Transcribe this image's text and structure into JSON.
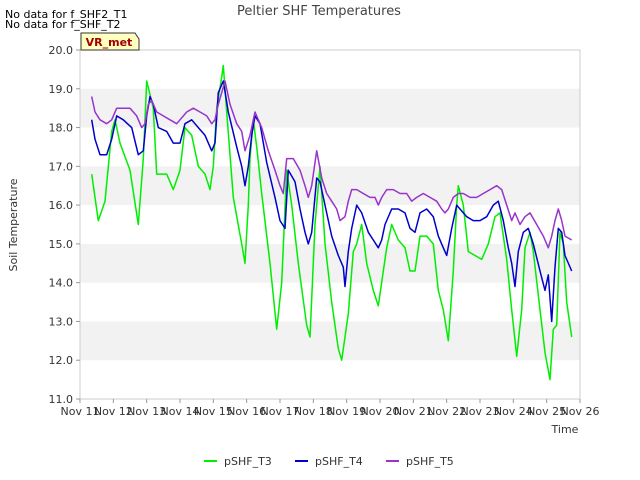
{
  "notes": [
    "No data for f_SHF2_T1",
    "No data for f_SHF_T2"
  ],
  "badge": "VR_met",
  "chart_data": {
    "type": "line",
    "title": "Peltier SHF Temperatures",
    "xlabel": "Time",
    "ylabel": "Soil Temperature",
    "xlim": [
      11,
      26
    ],
    "ylim": [
      11.0,
      20.0
    ],
    "x_ticks": [
      11,
      12,
      13,
      14,
      15,
      16,
      17,
      18,
      19,
      20,
      21,
      22,
      23,
      24,
      25,
      26
    ],
    "x_tick_labels": [
      "Nov 11",
      "Nov 12",
      "Nov 13",
      "Nov 14",
      "Nov 15",
      "Nov 16",
      "Nov 17",
      "Nov 18",
      "Nov 19",
      "Nov 20",
      "Nov 21",
      "Nov 22",
      "Nov 23",
      "Nov 24",
      "Nov 25",
      "Nov 26"
    ],
    "y_ticks": [
      "11.0",
      "12.0",
      "13.0",
      "14.0",
      "15.0",
      "16.0",
      "17.0",
      "18.0",
      "19.0",
      "20.0"
    ],
    "series": [
      {
        "name": "pSHF_T3",
        "color": "#00ee00",
        "points": [
          [
            11.35,
            16.8
          ],
          [
            11.55,
            15.6
          ],
          [
            11.75,
            16.1
          ],
          [
            11.95,
            17.9
          ],
          [
            12.05,
            18.2
          ],
          [
            12.2,
            17.6
          ],
          [
            12.5,
            16.9
          ],
          [
            12.75,
            15.5
          ],
          [
            12.9,
            17.2
          ],
          [
            13.0,
            19.2
          ],
          [
            13.2,
            18.5
          ],
          [
            13.3,
            16.8
          ],
          [
            13.6,
            16.8
          ],
          [
            13.8,
            16.4
          ],
          [
            14.0,
            16.9
          ],
          [
            14.15,
            18.0
          ],
          [
            14.35,
            17.8
          ],
          [
            14.55,
            17.0
          ],
          [
            14.75,
            16.8
          ],
          [
            14.9,
            16.4
          ],
          [
            15.0,
            17.0
          ],
          [
            15.1,
            18.5
          ],
          [
            15.25,
            19.3
          ],
          [
            15.3,
            19.6
          ],
          [
            15.4,
            18.4
          ],
          [
            15.6,
            16.2
          ],
          [
            15.85,
            15.0
          ],
          [
            15.95,
            14.5
          ],
          [
            16.05,
            16.0
          ],
          [
            16.1,
            17.2
          ],
          [
            16.2,
            18.2
          ],
          [
            16.3,
            17.5
          ],
          [
            16.45,
            16.3
          ],
          [
            16.7,
            14.5
          ],
          [
            16.9,
            12.8
          ],
          [
            17.05,
            14.0
          ],
          [
            17.2,
            16.9
          ],
          [
            17.35,
            16.0
          ],
          [
            17.55,
            14.5
          ],
          [
            17.8,
            12.9
          ],
          [
            17.9,
            12.6
          ],
          [
            18.05,
            15.5
          ],
          [
            18.2,
            17.0
          ],
          [
            18.35,
            15.0
          ],
          [
            18.55,
            13.5
          ],
          [
            18.75,
            12.3
          ],
          [
            18.85,
            12.0
          ],
          [
            18.95,
            12.6
          ],
          [
            19.05,
            13.2
          ],
          [
            19.2,
            14.8
          ],
          [
            19.3,
            15.0
          ],
          [
            19.45,
            15.5
          ],
          [
            19.6,
            14.5
          ],
          [
            19.8,
            13.8
          ],
          [
            19.95,
            13.4
          ],
          [
            20.1,
            14.3
          ],
          [
            20.2,
            14.9
          ],
          [
            20.35,
            15.5
          ],
          [
            20.55,
            15.1
          ],
          [
            20.75,
            14.9
          ],
          [
            20.9,
            14.3
          ],
          [
            21.05,
            14.3
          ],
          [
            21.2,
            15.2
          ],
          [
            21.4,
            15.2
          ],
          [
            21.6,
            15.0
          ],
          [
            21.75,
            13.8
          ],
          [
            21.9,
            13.3
          ],
          [
            22.05,
            12.5
          ],
          [
            22.2,
            14.3
          ],
          [
            22.3,
            16.0
          ],
          [
            22.35,
            16.5
          ],
          [
            22.5,
            16.0
          ],
          [
            22.65,
            14.8
          ],
          [
            22.85,
            14.7
          ],
          [
            23.05,
            14.6
          ],
          [
            23.25,
            15.0
          ],
          [
            23.45,
            15.7
          ],
          [
            23.6,
            15.8
          ],
          [
            23.8,
            14.6
          ],
          [
            23.95,
            13.3
          ],
          [
            24.1,
            12.1
          ],
          [
            24.25,
            13.3
          ],
          [
            24.35,
            14.9
          ],
          [
            24.5,
            15.3
          ],
          [
            24.6,
            14.8
          ],
          [
            24.8,
            13.3
          ],
          [
            24.95,
            12.2
          ],
          [
            25.1,
            11.5
          ],
          [
            25.2,
            12.8
          ],
          [
            25.3,
            12.9
          ],
          [
            25.4,
            15.3
          ],
          [
            25.5,
            15.0
          ],
          [
            25.6,
            13.5
          ],
          [
            25.75,
            12.6
          ]
        ]
      },
      {
        "name": "pSHF_T4",
        "color": "#0000cc",
        "points": [
          [
            11.35,
            18.2
          ],
          [
            11.45,
            17.7
          ],
          [
            11.6,
            17.3
          ],
          [
            11.8,
            17.3
          ],
          [
            11.95,
            17.7
          ],
          [
            12.1,
            18.3
          ],
          [
            12.3,
            18.2
          ],
          [
            12.55,
            18.0
          ],
          [
            12.75,
            17.3
          ],
          [
            12.9,
            17.4
          ],
          [
            13.0,
            18.3
          ],
          [
            13.1,
            18.8
          ],
          [
            13.2,
            18.6
          ],
          [
            13.35,
            18.0
          ],
          [
            13.6,
            17.9
          ],
          [
            13.8,
            17.6
          ],
          [
            14.0,
            17.6
          ],
          [
            14.15,
            18.1
          ],
          [
            14.35,
            18.2
          ],
          [
            14.55,
            18.0
          ],
          [
            14.75,
            17.8
          ],
          [
            14.95,
            17.4
          ],
          [
            15.05,
            17.6
          ],
          [
            15.15,
            18.9
          ],
          [
            15.3,
            19.2
          ],
          [
            15.45,
            18.4
          ],
          [
            15.7,
            17.5
          ],
          [
            15.85,
            17.0
          ],
          [
            15.95,
            16.5
          ],
          [
            16.05,
            17.0
          ],
          [
            16.15,
            17.8
          ],
          [
            16.25,
            18.3
          ],
          [
            16.4,
            18.1
          ],
          [
            16.6,
            17.1
          ],
          [
            16.85,
            16.2
          ],
          [
            17.0,
            15.6
          ],
          [
            17.15,
            15.4
          ],
          [
            17.25,
            16.9
          ],
          [
            17.45,
            16.6
          ],
          [
            17.6,
            15.9
          ],
          [
            17.75,
            15.3
          ],
          [
            17.85,
            15.0
          ],
          [
            17.95,
            15.3
          ],
          [
            18.1,
            16.7
          ],
          [
            18.2,
            16.6
          ],
          [
            18.35,
            16.0
          ],
          [
            18.55,
            15.2
          ],
          [
            18.75,
            14.7
          ],
          [
            18.9,
            14.4
          ],
          [
            18.95,
            13.9
          ],
          [
            19.05,
            14.8
          ],
          [
            19.15,
            15.4
          ],
          [
            19.3,
            16.0
          ],
          [
            19.45,
            15.8
          ],
          [
            19.65,
            15.3
          ],
          [
            19.8,
            15.1
          ],
          [
            19.95,
            14.9
          ],
          [
            20.05,
            15.1
          ],
          [
            20.15,
            15.5
          ],
          [
            20.35,
            15.9
          ],
          [
            20.55,
            15.9
          ],
          [
            20.75,
            15.8
          ],
          [
            20.9,
            15.4
          ],
          [
            21.05,
            15.3
          ],
          [
            21.2,
            15.8
          ],
          [
            21.4,
            15.9
          ],
          [
            21.6,
            15.7
          ],
          [
            21.75,
            15.2
          ],
          [
            21.9,
            14.9
          ],
          [
            22.0,
            14.7
          ],
          [
            22.15,
            15.4
          ],
          [
            22.3,
            16.0
          ],
          [
            22.4,
            15.9
          ],
          [
            22.6,
            15.7
          ],
          [
            22.8,
            15.6
          ],
          [
            23.0,
            15.6
          ],
          [
            23.2,
            15.7
          ],
          [
            23.4,
            16.0
          ],
          [
            23.55,
            16.1
          ],
          [
            23.7,
            15.6
          ],
          [
            23.85,
            14.9
          ],
          [
            23.95,
            14.5
          ],
          [
            24.05,
            13.9
          ],
          [
            24.15,
            14.8
          ],
          [
            24.3,
            15.3
          ],
          [
            24.45,
            15.4
          ],
          [
            24.6,
            15.0
          ],
          [
            24.8,
            14.3
          ],
          [
            24.95,
            13.8
          ],
          [
            25.05,
            14.2
          ],
          [
            25.15,
            13.0
          ],
          [
            25.25,
            14.4
          ],
          [
            25.35,
            15.4
          ],
          [
            25.45,
            15.3
          ],
          [
            25.55,
            14.7
          ],
          [
            25.75,
            14.3
          ]
        ]
      },
      {
        "name": "pSHF_T5",
        "color": "#9933cc",
        "points": [
          [
            11.35,
            18.8
          ],
          [
            11.45,
            18.4
          ],
          [
            11.6,
            18.2
          ],
          [
            11.8,
            18.1
          ],
          [
            11.95,
            18.2
          ],
          [
            12.1,
            18.5
          ],
          [
            12.3,
            18.5
          ],
          [
            12.5,
            18.5
          ],
          [
            12.7,
            18.3
          ],
          [
            12.85,
            18.0
          ],
          [
            12.95,
            18.1
          ],
          [
            13.05,
            18.6
          ],
          [
            13.15,
            18.7
          ],
          [
            13.3,
            18.4
          ],
          [
            13.5,
            18.3
          ],
          [
            13.7,
            18.2
          ],
          [
            13.9,
            18.1
          ],
          [
            14.0,
            18.2
          ],
          [
            14.2,
            18.4
          ],
          [
            14.4,
            18.5
          ],
          [
            14.6,
            18.4
          ],
          [
            14.8,
            18.3
          ],
          [
            14.95,
            18.1
          ],
          [
            15.05,
            18.2
          ],
          [
            15.15,
            18.6
          ],
          [
            15.25,
            18.9
          ],
          [
            15.35,
            19.2
          ],
          [
            15.5,
            18.6
          ],
          [
            15.7,
            18.1
          ],
          [
            15.85,
            17.9
          ],
          [
            15.95,
            17.4
          ],
          [
            16.1,
            17.8
          ],
          [
            16.25,
            18.4
          ],
          [
            16.45,
            18.0
          ],
          [
            16.65,
            17.4
          ],
          [
            16.85,
            16.9
          ],
          [
            17.0,
            16.5
          ],
          [
            17.1,
            16.3
          ],
          [
            17.2,
            17.2
          ],
          [
            17.4,
            17.2
          ],
          [
            17.6,
            16.9
          ],
          [
            17.75,
            16.5
          ],
          [
            17.85,
            16.2
          ],
          [
            17.95,
            16.5
          ],
          [
            18.05,
            17.1
          ],
          [
            18.1,
            17.4
          ],
          [
            18.25,
            16.7
          ],
          [
            18.4,
            16.3
          ],
          [
            18.55,
            16.1
          ],
          [
            18.7,
            15.9
          ],
          [
            18.8,
            15.6
          ],
          [
            18.95,
            15.7
          ],
          [
            19.05,
            16.1
          ],
          [
            19.15,
            16.4
          ],
          [
            19.3,
            16.4
          ],
          [
            19.5,
            16.3
          ],
          [
            19.7,
            16.2
          ],
          [
            19.85,
            16.2
          ],
          [
            19.95,
            16.0
          ],
          [
            20.05,
            16.2
          ],
          [
            20.2,
            16.4
          ],
          [
            20.4,
            16.4
          ],
          [
            20.6,
            16.3
          ],
          [
            20.8,
            16.3
          ],
          [
            20.95,
            16.1
          ],
          [
            21.1,
            16.2
          ],
          [
            21.3,
            16.3
          ],
          [
            21.5,
            16.2
          ],
          [
            21.7,
            16.1
          ],
          [
            21.85,
            15.9
          ],
          [
            21.95,
            15.8
          ],
          [
            22.05,
            15.9
          ],
          [
            22.2,
            16.2
          ],
          [
            22.35,
            16.3
          ],
          [
            22.5,
            16.3
          ],
          [
            22.7,
            16.2
          ],
          [
            22.9,
            16.2
          ],
          [
            23.1,
            16.3
          ],
          [
            23.3,
            16.4
          ],
          [
            23.5,
            16.5
          ],
          [
            23.65,
            16.4
          ],
          [
            23.8,
            16.0
          ],
          [
            23.95,
            15.6
          ],
          [
            24.05,
            15.8
          ],
          [
            24.2,
            15.5
          ],
          [
            24.35,
            15.7
          ],
          [
            24.5,
            15.8
          ],
          [
            24.7,
            15.5
          ],
          [
            24.9,
            15.2
          ],
          [
            25.05,
            14.9
          ],
          [
            25.15,
            15.2
          ],
          [
            25.25,
            15.6
          ],
          [
            25.35,
            15.9
          ],
          [
            25.45,
            15.6
          ],
          [
            25.55,
            15.2
          ],
          [
            25.75,
            15.1
          ]
        ]
      }
    ],
    "legend": {
      "position": "bottom-center",
      "entries": [
        "pSHF_T3",
        "pSHF_T4",
        "pSHF_T5"
      ]
    }
  }
}
